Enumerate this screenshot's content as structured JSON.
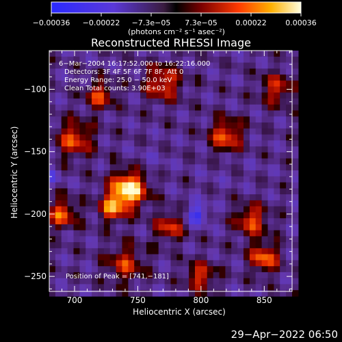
{
  "chart_data": {
    "type": "heatmap",
    "title": "Reconstructed RHESSI Image",
    "xlabel": "Heliocentric X (arcsec)",
    "ylabel": "Heliocentric Y (arcsec)",
    "xlim": [
      680,
      872
    ],
    "ylim": [
      -262,
      -69
    ],
    "x_ticks": [
      "700",
      "750",
      "800",
      "850"
    ],
    "y_ticks": [
      "−100",
      "−150",
      "−200",
      "−250"
    ],
    "colorbar": {
      "ticks": [
        "−0.00036",
        "−0.00022",
        "−7.3e−05",
        "7.3e−05",
        "0.00022",
        "0.00036"
      ],
      "range": [
        -0.00036,
        0.00036
      ],
      "unit_line": "(photons cm⁻² s⁻¹ asec⁻²)"
    },
    "annotations": [
      "6−Mar−2004 16:17:52.000 to 16:22:16.000",
      "Detectors: 3F 4F 5F 6F 7F 8F, Att 0",
      "Energy Range: 25.0 − 50.0 keV",
      "Clean     Total counts: 3.90E+03"
    ],
    "peak_label": "Position of Peak = [741,−181]",
    "peak": {
      "x": 741,
      "y": -181
    },
    "sources": [
      {
        "x": 743,
        "y": -180,
        "value": 0.00036,
        "sigma": 10
      },
      {
        "x": 730,
        "y": -195,
        "value": 0.0002,
        "sigma": 8
      },
      {
        "x": 820,
        "y": -137,
        "value": 0.0002,
        "sigma": 9
      },
      {
        "x": 700,
        "y": -140,
        "value": 0.00018,
        "sigma": 10
      },
      {
        "x": 690,
        "y": -200,
        "value": 0.0002,
        "sigma": 8
      },
      {
        "x": 840,
        "y": -205,
        "value": 0.00018,
        "sigma": 9
      },
      {
        "x": 850,
        "y": -235,
        "value": 0.00022,
        "sigma": 8
      },
      {
        "x": 775,
        "y": -210,
        "value": 0.00016,
        "sigma": 8
      },
      {
        "x": 770,
        "y": -95,
        "value": 0.00018,
        "sigma": 10
      },
      {
        "x": 720,
        "y": -105,
        "value": 0.00016,
        "sigma": 8
      },
      {
        "x": 860,
        "y": -100,
        "value": 0.00014,
        "sigma": 9
      },
      {
        "x": 740,
        "y": -240,
        "value": 0.00014,
        "sigma": 10
      },
      {
        "x": 800,
        "y": -250,
        "value": 0.00016,
        "sigma": 8
      },
      {
        "x": 797,
        "y": -200,
        "value": -0.0003,
        "sigma": 6
      },
      {
        "x": 682,
        "y": -170,
        "value": -0.0002,
        "sigma": 5
      },
      {
        "x": 760,
        "y": -160,
        "value": -0.00012,
        "sigma": 10
      },
      {
        "x": 810,
        "y": -170,
        "value": -0.0001,
        "sigma": 10
      },
      {
        "x": 840,
        "y": -165,
        "value": -0.0001,
        "sigma": 8
      }
    ]
  },
  "timestamp": "29−Apr−2022 06:50"
}
